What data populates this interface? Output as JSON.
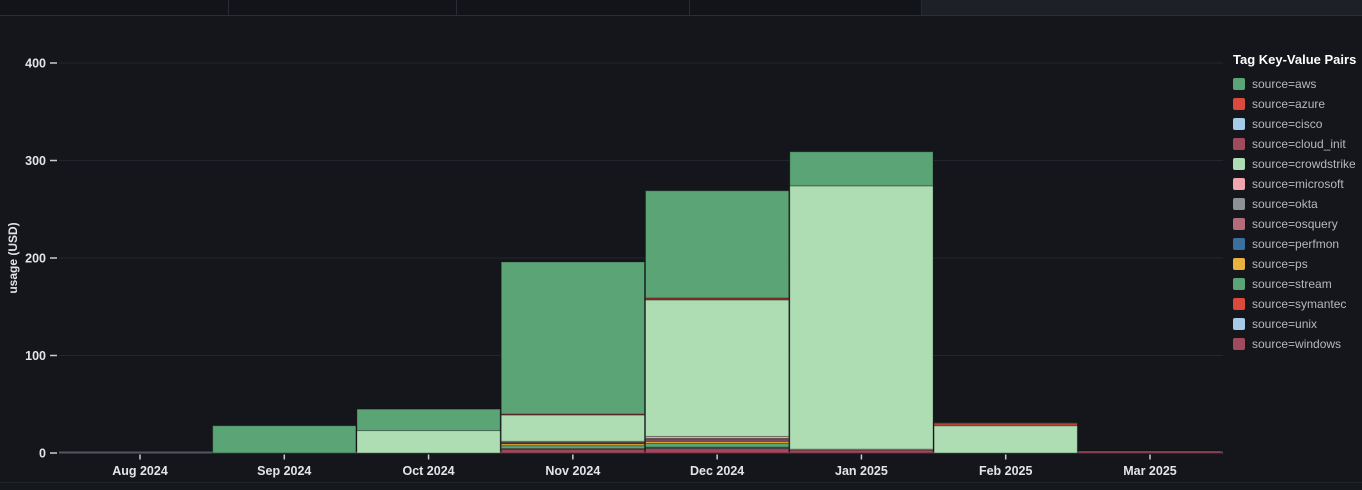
{
  "chart_data": {
    "type": "bar",
    "stacked": true,
    "title": "",
    "ylabel": "usage (USD)",
    "xlabel": "",
    "categories": [
      "Aug 2024",
      "Sep 2024",
      "Oct 2024",
      "Nov 2024",
      "Dec 2024",
      "Jan 2025",
      "Feb 2025",
      "Mar 2025"
    ],
    "yticks": [
      0,
      100,
      200,
      300,
      400
    ],
    "ylim": [
      0,
      430
    ],
    "grid": true,
    "legend_position": "right",
    "stack_note": "stacked bottom-to-top in reverse series order (windows at bottom, aws on top)",
    "series": [
      {
        "name": "source=aws",
        "color": "#5ba476",
        "values": [
          0,
          28,
          22,
          156,
          110,
          35,
          1,
          0
        ]
      },
      {
        "name": "source=azure",
        "color": "#dc4a3e",
        "values": [
          0,
          0,
          0,
          0.5,
          1,
          0,
          2,
          0
        ]
      },
      {
        "name": "source=cisco",
        "color": "#a5cbe9",
        "values": [
          0,
          0,
          0,
          0,
          0.5,
          0,
          0,
          0
        ]
      },
      {
        "name": "source=cloud_init",
        "color": "#a14a5d",
        "values": [
          0,
          0,
          0,
          0.5,
          0.5,
          0,
          0,
          0
        ]
      },
      {
        "name": "source=crowdstrike",
        "color": "#aedcb3",
        "values": [
          0,
          0,
          23,
          27,
          140,
          270,
          28,
          0
        ]
      },
      {
        "name": "source=microsoft",
        "color": "#f0a6ae",
        "values": [
          0,
          0,
          0,
          1,
          2,
          1,
          0,
          0
        ]
      },
      {
        "name": "source=okta",
        "color": "#8f9295",
        "values": [
          0,
          0,
          0,
          0.5,
          1,
          0,
          0,
          0
        ]
      },
      {
        "name": "source=osquery",
        "color": "#b56c7a",
        "values": [
          0,
          0,
          0,
          0.5,
          1.5,
          0,
          0,
          0
        ]
      },
      {
        "name": "source=perfmon",
        "color": "#3a70a0",
        "values": [
          0,
          0,
          0,
          0.5,
          0.5,
          0,
          0,
          0
        ]
      },
      {
        "name": "source=ps",
        "color": "#eab23c",
        "values": [
          0,
          0,
          0,
          2,
          2,
          0,
          0,
          0
        ]
      },
      {
        "name": "source=stream",
        "color": "#5ba476",
        "values": [
          0,
          0,
          0,
          3,
          4,
          0,
          0,
          0
        ]
      },
      {
        "name": "source=symantec",
        "color": "#dc4a3e",
        "values": [
          0,
          0,
          0,
          1,
          1,
          0,
          0,
          0
        ]
      },
      {
        "name": "source=unix",
        "color": "#a5cbe9",
        "values": [
          0,
          0,
          0,
          0,
          0.5,
          0,
          0,
          0
        ]
      },
      {
        "name": "source=windows",
        "color": "#a14a5d",
        "values": [
          0,
          0,
          0,
          3.5,
          4.5,
          3,
          0,
          2
        ]
      }
    ]
  },
  "legend": {
    "title": "Tag Key-Value Pairs"
  },
  "colors": {
    "background": "#14161b",
    "grid": "#23262c",
    "zero_axis": "#53565c",
    "tick_text": "#e3e4e6",
    "legend_text": "#b6b8bb"
  }
}
